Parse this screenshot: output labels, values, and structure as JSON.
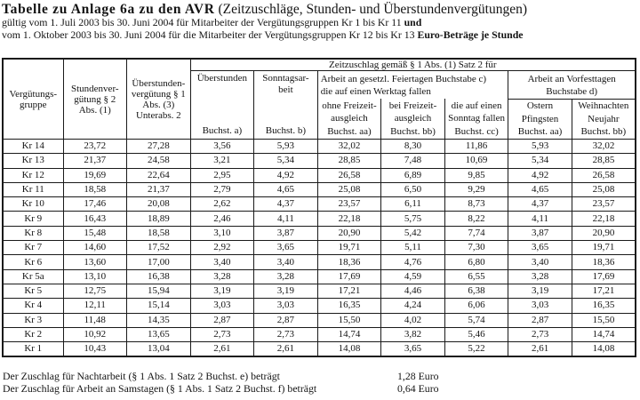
{
  "header": {
    "title_bold": "Tabelle zu Anlage 6a zu den AVR",
    "title_regular": " (Zeitzuschläge, Stunden- und Überstundenvergütungen)",
    "line2_regular": "gültig vom 1. Juli 2003 bis 30. Juni 2004 für Mitarbeiter der Vergütungsgruppen Kr 1 bis Kr 11 ",
    "line2_bold": "und",
    "line3_regular": "vom 1. Oktober 2003 bis 30. Juni 2004 für die Mitarbeiter der Vergütungsgruppen Kr 12 bis Kr 13 ",
    "line3_bold": "Euro-Beträge je Stunde"
  },
  "table": {
    "col_headers": {
      "verg_gruppe": "Vergütungs-\ngruppe",
      "stundenverguetung": "Stundenver-\ngütung § 2\nAbs. (1)",
      "ueberstundenverguetung": "Überstunden-\nvergütung § 1\nAbs. (3)\nUnterabs. 2",
      "zeitzuschlag_span": "Zeitzuschlag gemäß § 1 Abs. (1) Satz 2 für",
      "ueberstunden": {
        "label": "Überstunden",
        "buchst": "Buchst. a)"
      },
      "sonntagsarbeit": {
        "label": "Sonntagsar-\nbeit",
        "buchst": "Buchst. b)"
      },
      "feiertage": {
        "label": "Arbeit an gesetzl. Feiertagen Buchstabe c)\ndie auf einen Werktag fallen",
        "sub": [
          "ohne Freizeit-\nausgleich\nBuchst. aa)",
          "bei Freizeit-\nausgleich\nBuchst. bb)",
          "die auf einen\nSonntag fallen\nBuchst. cc)"
        ]
      },
      "vorfesttage": {
        "label": "Arbeit an Vorfesttagen\nBuchstabe d)",
        "sub": [
          "Ostern\nPfingsten\nBuchst. aa)",
          "Weihnachten\nNeujahr\nBuchst. bb)"
        ]
      }
    },
    "rows": [
      {
        "group": "Kr 14",
        "values": [
          "23,72",
          "27,28",
          "3,56",
          "5,93",
          "32,02",
          "8,30",
          "11,86",
          "5,93",
          "32,02"
        ]
      },
      {
        "group": "Kr 13",
        "values": [
          "21,37",
          "24,58",
          "3,21",
          "5,34",
          "28,85",
          "7,48",
          "10,69",
          "5,34",
          "28,85"
        ]
      },
      {
        "group": "Kr 12",
        "values": [
          "19,69",
          "22,64",
          "2,95",
          "4,92",
          "26,58",
          "6,89",
          "9,85",
          "4,92",
          "26,58"
        ]
      },
      {
        "group": "Kr 11",
        "values": [
          "18,58",
          "21,37",
          "2,79",
          "4,65",
          "25,08",
          "6,50",
          "9,29",
          "4,65",
          "25,08"
        ]
      },
      {
        "group": "Kr 10",
        "values": [
          "17,46",
          "20,08",
          "2,62",
          "4,37",
          "23,57",
          "6,11",
          "8,73",
          "4,37",
          "23,57"
        ]
      },
      {
        "group": "Kr 9",
        "values": [
          "16,43",
          "18,89",
          "2,46",
          "4,11",
          "22,18",
          "5,75",
          "8,22",
          "4,11",
          "22,18"
        ]
      },
      {
        "group": "Kr 8",
        "values": [
          "15,48",
          "18,58",
          "3,10",
          "3,87",
          "20,90",
          "5,42",
          "7,74",
          "3,87",
          "20,90"
        ]
      },
      {
        "group": "Kr 7",
        "values": [
          "14,60",
          "17,52",
          "2,92",
          "3,65",
          "19,71",
          "5,11",
          "7,30",
          "3,65",
          "19,71"
        ]
      },
      {
        "group": "Kr 6",
        "values": [
          "13,60",
          "17,00",
          "3,40",
          "3,40",
          "18,36",
          "4,76",
          "6,80",
          "3,40",
          "18,36"
        ]
      },
      {
        "group": "Kr 5a",
        "values": [
          "13,10",
          "16,38",
          "3,28",
          "3,28",
          "17,69",
          "4,59",
          "6,55",
          "3,28",
          "17,69"
        ]
      },
      {
        "group": "Kr 5",
        "values": [
          "12,75",
          "15,94",
          "3,19",
          "3,19",
          "17,21",
          "4,46",
          "6,38",
          "3,19",
          "17,21"
        ]
      },
      {
        "group": "Kr 4",
        "values": [
          "12,11",
          "15,14",
          "3,03",
          "3,03",
          "16,35",
          "4,24",
          "6,06",
          "3,03",
          "16,35"
        ]
      },
      {
        "group": "Kr 3",
        "values": [
          "11,48",
          "14,35",
          "2,87",
          "2,87",
          "15,50",
          "4,02",
          "5,74",
          "2,87",
          "15,50"
        ]
      },
      {
        "group": "Kr 2",
        "values": [
          "10,92",
          "13,65",
          "2,73",
          "2,73",
          "14,74",
          "3,82",
          "5,46",
          "2,73",
          "14,74"
        ]
      },
      {
        "group": "Kr 1",
        "values": [
          "10,43",
          "13,04",
          "2,61",
          "2,61",
          "14,08",
          "3,65",
          "5,22",
          "2,61",
          "14,08"
        ]
      }
    ]
  },
  "footer": {
    "rows": [
      {
        "label": "Der Zuschlag für Nachtarbeit (§ 1 Abs. 1 Satz 2 Buchst. e) beträgt",
        "value": "1,28 Euro"
      },
      {
        "label": "Der Zuschlag für Arbeit an Samstagen (§ 1 Abs. 1 Satz 2 Buchst. f) beträgt",
        "value": "0,64 Euro"
      }
    ]
  }
}
